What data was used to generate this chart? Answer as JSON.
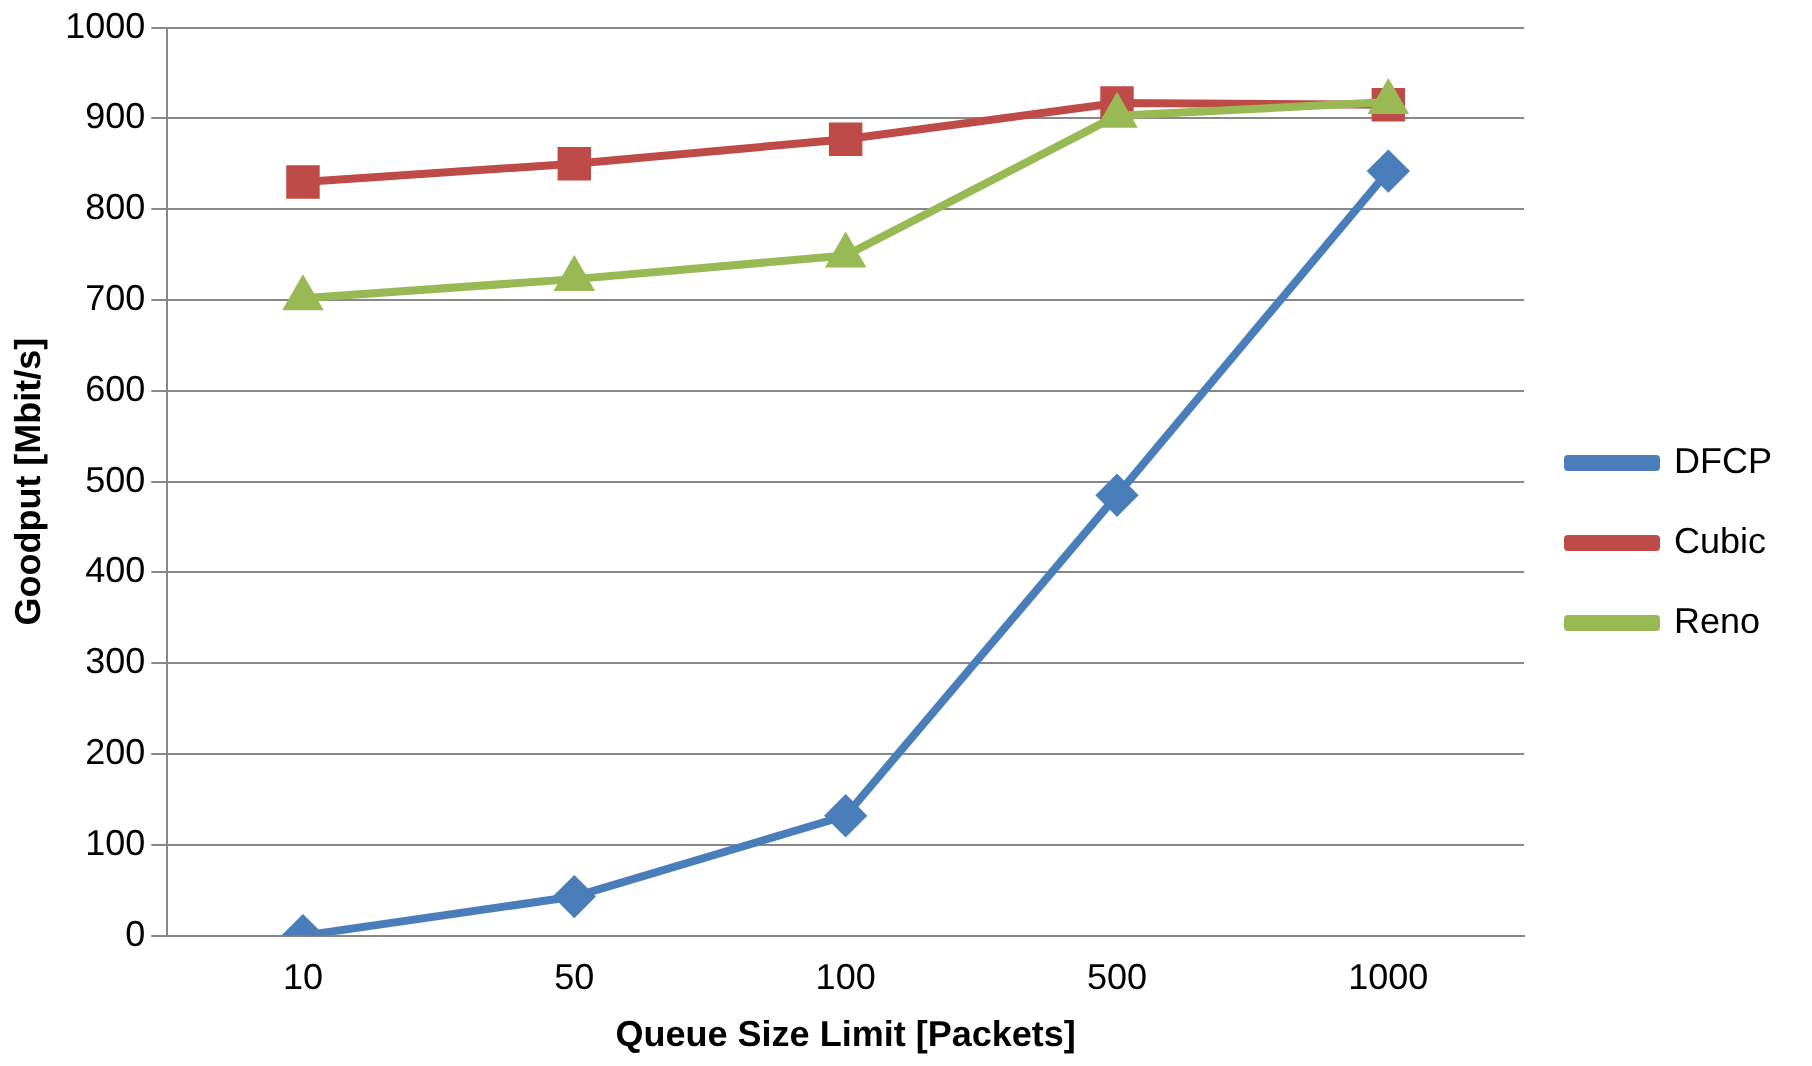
{
  "chart_data": {
    "type": "line",
    "xlabel": "Queue Size Limit [Packets]",
    "ylabel": "Goodput [Mbit/s]",
    "categories": [
      "10",
      "50",
      "100",
      "500",
      "1000"
    ],
    "series": [
      {
        "name": "DFCP",
        "color": "#4a7ebb",
        "marker": "diamond",
        "values": [
          0,
          43,
          132,
          485,
          842
        ]
      },
      {
        "name": "Cubic",
        "color": "#be4b48",
        "marker": "square",
        "values": [
          830,
          850,
          877,
          917,
          915
        ]
      },
      {
        "name": "Reno",
        "color": "#98b954",
        "marker": "triangle",
        "values": [
          702,
          723,
          749,
          903,
          918
        ]
      }
    ],
    "ylim": [
      0,
      1000
    ],
    "yticks": [
      0,
      100,
      200,
      300,
      400,
      500,
      600,
      700,
      800,
      900,
      1000
    ],
    "grid": "y",
    "legend": "right"
  }
}
